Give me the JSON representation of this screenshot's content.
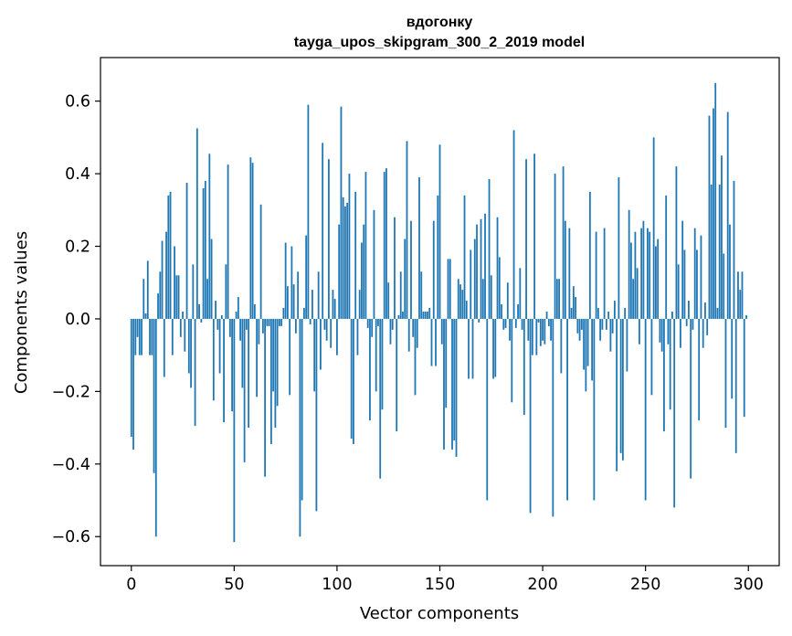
{
  "chart_data": {
    "type": "bar",
    "title": "вдогонку",
    "subtitle": "tayga_upos_skipgram_300_2_2019 model",
    "xlabel": "Vector components",
    "ylabel": "Components values",
    "xlim": [
      -15,
      315
    ],
    "ylim": [
      -0.68,
      0.72
    ],
    "x_ticks": [
      0,
      50,
      100,
      150,
      200,
      250,
      300
    ],
    "x_tick_labels": [
      "0",
      "50",
      "100",
      "150",
      "200",
      "250",
      "300"
    ],
    "y_ticks": [
      -0.6,
      -0.4,
      -0.2,
      0.0,
      0.2,
      0.4,
      0.6
    ],
    "y_tick_labels": [
      "−0.6",
      "−0.4",
      "−0.2",
      "0.0",
      "0.2",
      "0.4",
      "0.6"
    ],
    "grid": false,
    "bar_color": "#1f77b4",
    "values": [
      -0.325,
      -0.36,
      -0.1,
      -0.05,
      -0.1,
      -0.1,
      0.11,
      0.015,
      0.16,
      -0.1,
      -0.1,
      -0.425,
      -0.6,
      0.07,
      0.13,
      0.215,
      -0.16,
      0.24,
      0.34,
      0.35,
      -0.1,
      0.2,
      0.12,
      0.12,
      -0.05,
      0.02,
      -0.09,
      0.375,
      -0.15,
      -0.19,
      0.15,
      -0.295,
      0.525,
      0.04,
      -0.01,
      0.36,
      0.38,
      0.11,
      0.455,
      0.22,
      -0.225,
      0.05,
      -0.03,
      -0.15,
      0.01,
      -0.285,
      0.15,
      0.425,
      -0.05,
      -0.255,
      -0.615,
      0.02,
      0.06,
      -0.06,
      -0.19,
      -0.395,
      -0.03,
      -0.3,
      0.445,
      0.43,
      0.04,
      -0.215,
      -0.07,
      0.315,
      -0.04,
      -0.435,
      -0.02,
      -0.02,
      -0.345,
      -0.2,
      -0.3,
      -0.24,
      -0.02,
      -0.02,
      0.03,
      0.21,
      0.09,
      -0.21,
      0.2,
      0.095,
      -0.04,
      0.13,
      -0.6,
      -0.5,
      0.03,
      0.23,
      0.59,
      -0.015,
      0.08,
      -0.2,
      -0.53,
      0.13,
      -0.14,
      0.485,
      -0.03,
      -0.06,
      0.44,
      -0.08,
      0.08,
      0.055,
      -0.1,
      0.26,
      0.585,
      0.335,
      0.31,
      0.32,
      0.4,
      -0.33,
      -0.345,
      0.35,
      -0.1,
      0.08,
      0.21,
      0.26,
      0.405,
      -0.025,
      -0.28,
      -0.05,
      0.3,
      -0.2,
      -0.02,
      -0.44,
      -0.25,
      0.405,
      0.415,
      0.1,
      -0.07,
      -0.03,
      0.28,
      -0.31,
      0.01,
      0.13,
      0.02,
      0.22,
      0.49,
      -0.09,
      0.27,
      -0.05,
      -0.21,
      -0.08,
      0.39,
      0.13,
      0.02,
      0.02,
      0.02,
      0.03,
      -0.13,
      0.27,
      -0.13,
      0.34,
      0.48,
      -0.07,
      -0.36,
      -0.245,
      0.165,
      0.165,
      -0.36,
      -0.335,
      -0.38,
      0.11,
      0.095,
      0.08,
      0.34,
      0.05,
      -0.165,
      0.19,
      -0.165,
      0.22,
      0.26,
      -0.01,
      0.275,
      0.11,
      0.29,
      -0.5,
      0.385,
      0.12,
      -0.165,
      -0.16,
      0.28,
      0.17,
      0.04,
      -0.03,
      -0.025,
      0.1,
      -0.06,
      -0.23,
      0.52,
      -0.025,
      0.04,
      0.14,
      -0.03,
      -0.265,
      0.44,
      -0.06,
      -0.535,
      -0.1,
      0.455,
      -0.1,
      -0.01,
      -0.075,
      -0.06,
      -0.07,
      0.02,
      -0.02,
      -0.06,
      -0.545,
      0.4,
      0.11,
      0.11,
      -0.15,
      0.42,
      0.27,
      -0.5,
      0.25,
      0.03,
      0.09,
      0.06,
      -0.04,
      -0.06,
      -0.03,
      -0.14,
      -0.2,
      -0.13,
      0.35,
      -0.17,
      -0.5,
      0.24,
      0.03,
      -0.06,
      -0.03,
      0.25,
      -0.03,
      0.02,
      -0.09,
      -0.04,
      0.05,
      -0.42,
      0.39,
      -0.37,
      -0.39,
      0.03,
      -0.145,
      0.3,
      0.21,
      0.11,
      0.24,
      0.14,
      -0.07,
      0.25,
      0.27,
      -0.5,
      0.25,
      0.24,
      -0.21,
      0.5,
      0.2,
      0.22,
      -0.065,
      -0.09,
      -0.31,
      0.34,
      -0.07,
      -0.25,
      0.02,
      -0.52,
      0.42,
      0.15,
      -0.08,
      0.27,
      0.19,
      -0.02,
      0.05,
      -0.44,
      -0.03,
      0.25,
      0.19,
      -0.28,
      0.23,
      -0.08,
      0.045,
      -0.045,
      0.56,
      0.37,
      0.58,
      0.65,
      0.03,
      0.37,
      0.45,
      0.18,
      -0.3,
      0.57,
      0.26,
      -0.22,
      0.38,
      -0.37,
      0.13,
      0.08,
      0.13,
      -0.27,
      0.01
    ]
  }
}
